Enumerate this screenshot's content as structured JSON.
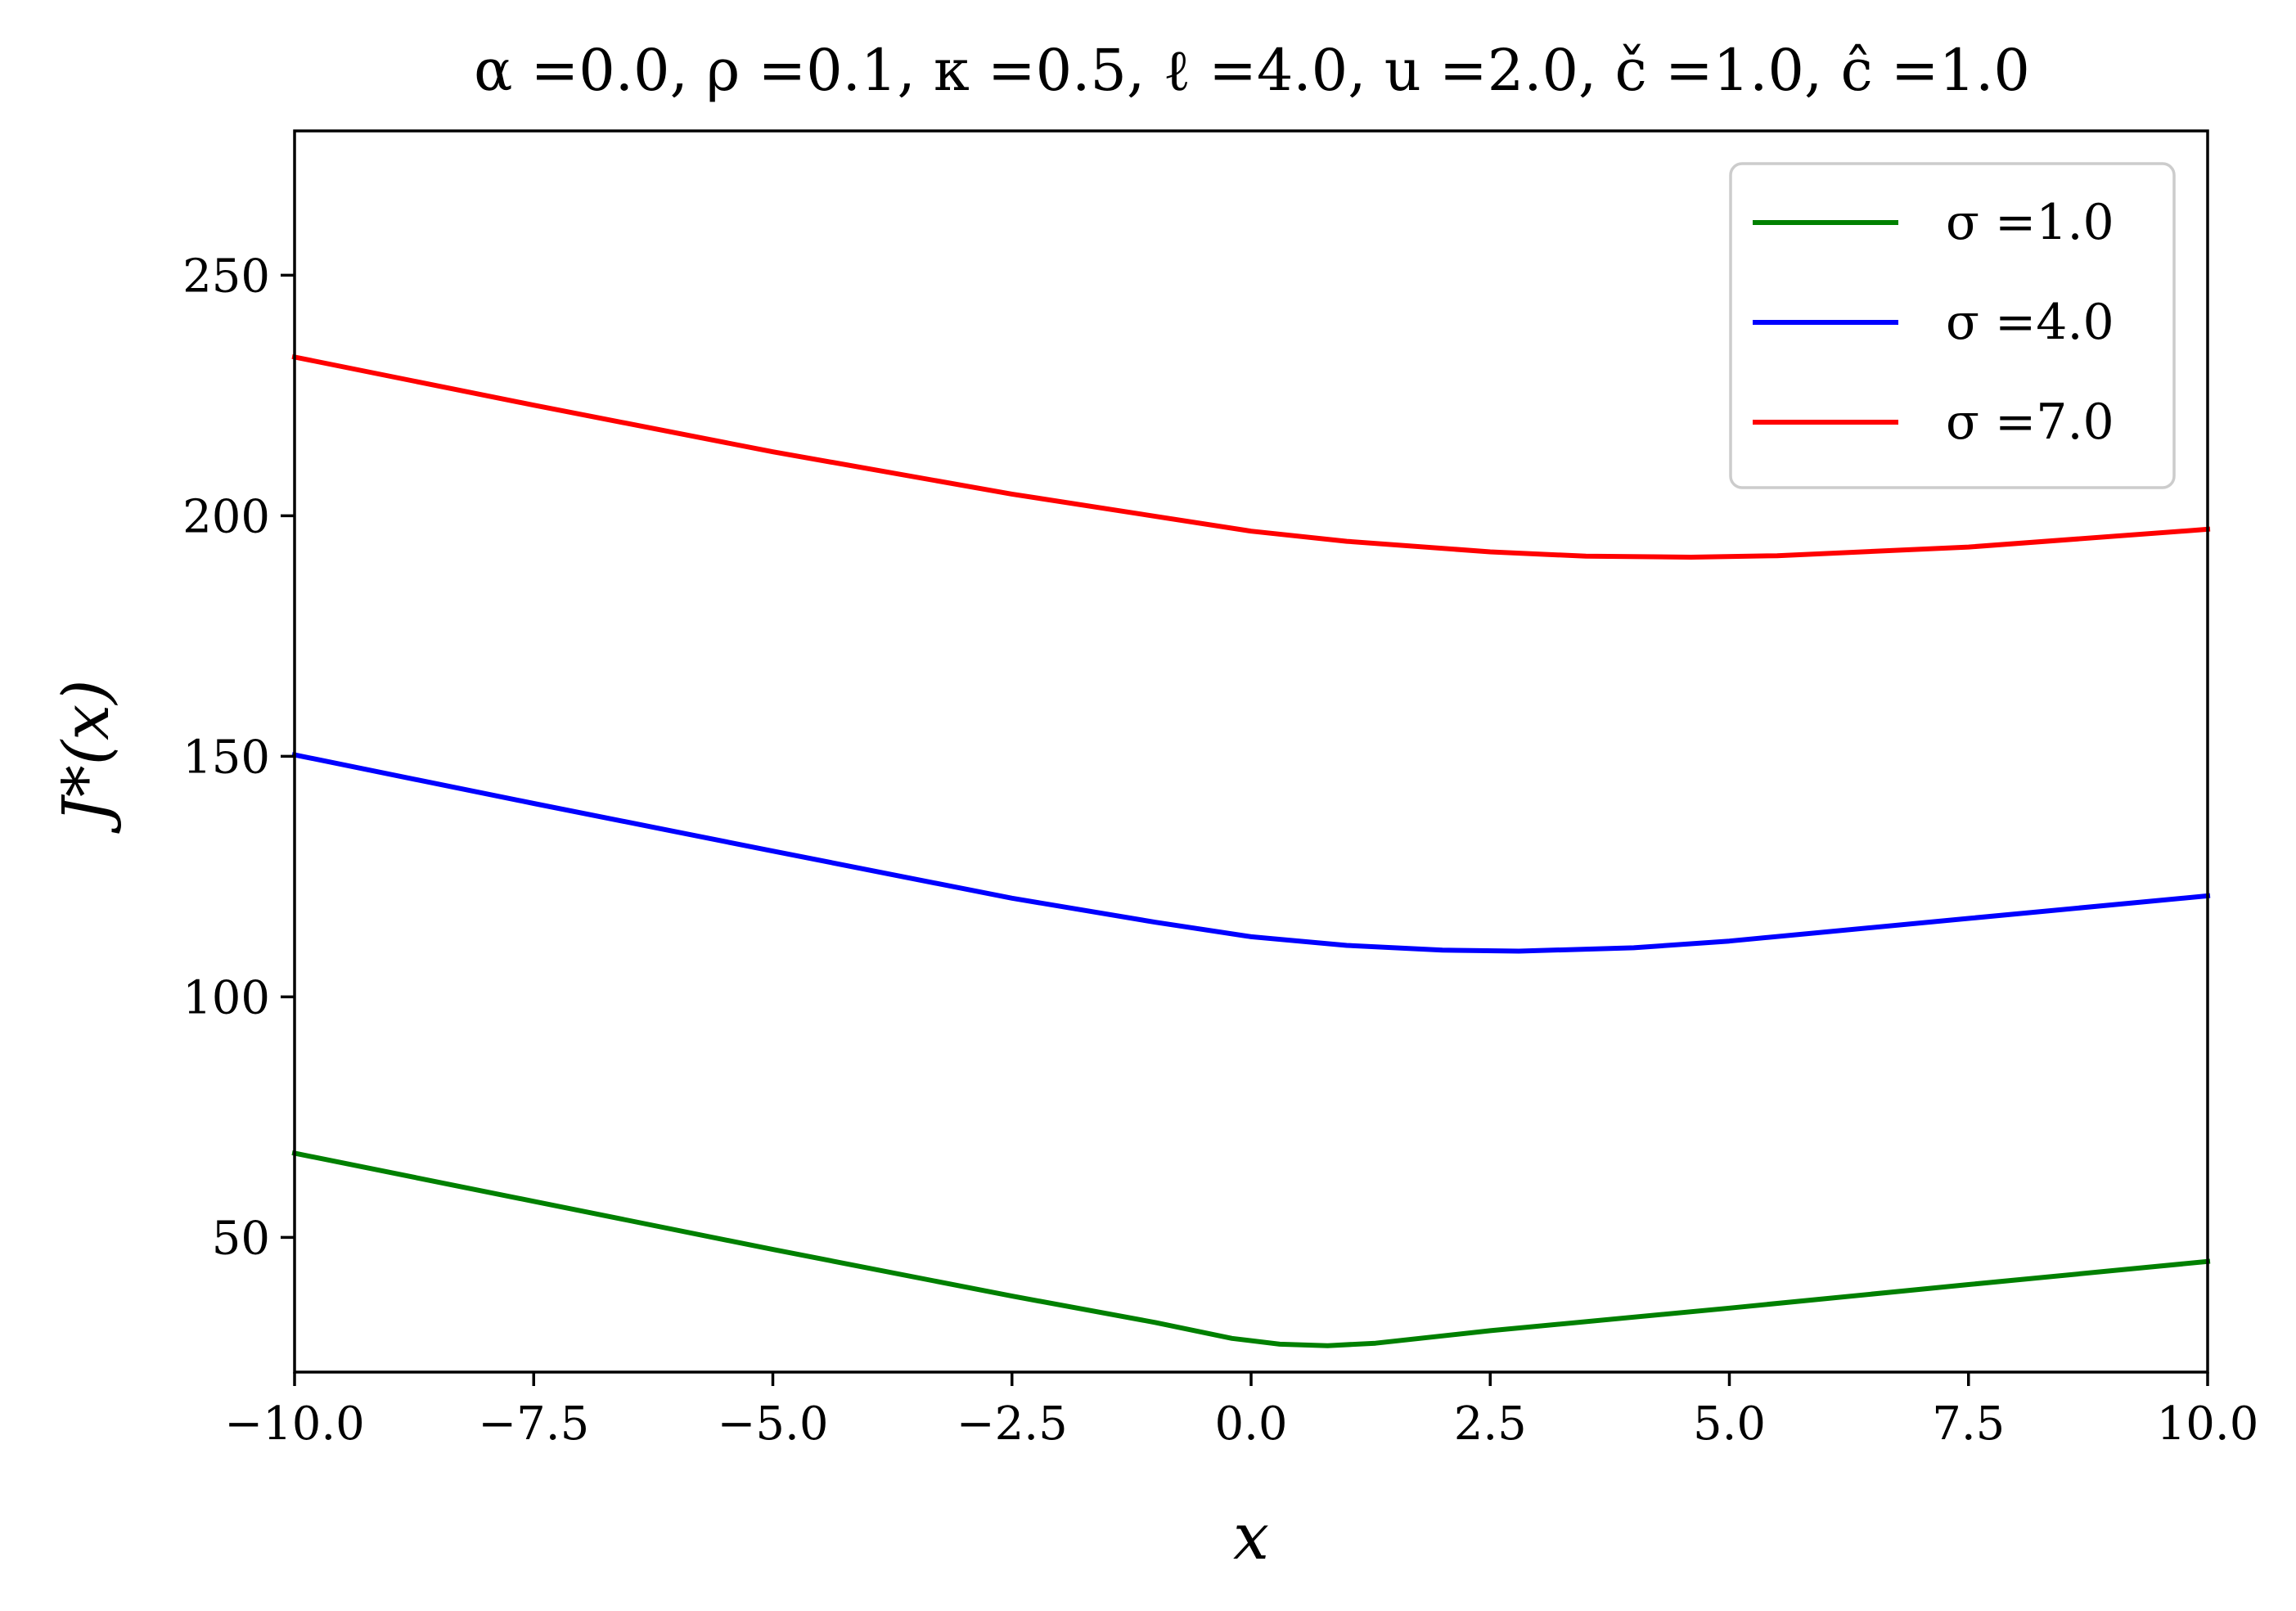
{
  "chart_data": {
    "type": "line",
    "title": "α =0.0, ρ =0.1, κ =0.5, ℓ =4.0, u =2.0, č =1.0, ĉ =1.0",
    "xlabel": "x",
    "ylabel": "J*(x)",
    "xlim": [
      -10,
      10
    ],
    "ylim": [
      22,
      280
    ],
    "xticks": [
      -10,
      -7.5,
      -5,
      -2.5,
      0,
      2.5,
      5,
      7.5,
      10
    ],
    "xtick_labels": [
      "−10.0",
      "−7.5",
      "−5.0",
      "−2.5",
      "0.0",
      "2.5",
      "5.0",
      "7.5",
      "10.0"
    ],
    "yticks": [
      50,
      100,
      150,
      200,
      250
    ],
    "ytick_labels": [
      "50",
      "100",
      "150",
      "200",
      "250"
    ],
    "grid": false,
    "legend_position": "top-right",
    "series": [
      {
        "name": "σ =1.0",
        "color": "#008000",
        "x": [
          -10,
          -7.5,
          -5,
          -2.5,
          -1,
          -0.2,
          0.3,
          0.8,
          1.3,
          2.5,
          5,
          7.5,
          10
        ],
        "y": [
          67.5,
          57.5,
          47.5,
          37.8,
          32.3,
          29,
          27.8,
          27.5,
          28,
          30.6,
          35.3,
          40.2,
          45
        ]
      },
      {
        "name": "σ =4.0",
        "color": "#0000ff",
        "x": [
          -10,
          -7.5,
          -5,
          -2.5,
          -1,
          0,
          1,
          2,
          2.8,
          4,
          5,
          7.5,
          10
        ],
        "y": [
          150.3,
          140.2,
          130.3,
          120.5,
          115.5,
          112.5,
          110.7,
          109.7,
          109.5,
          110.2,
          111.6,
          116.3,
          121
        ]
      },
      {
        "name": "σ =7.0",
        "color": "#ff0000",
        "x": [
          -10,
          -7.5,
          -5,
          -2.5,
          0,
          1,
          2.5,
          3.5,
          4.6,
          5.5,
          7.5,
          10
        ],
        "y": [
          233,
          223,
          213.3,
          204.5,
          196.8,
          194.7,
          192.5,
          191.6,
          191.4,
          191.7,
          193.5,
          197.2
        ]
      }
    ]
  }
}
